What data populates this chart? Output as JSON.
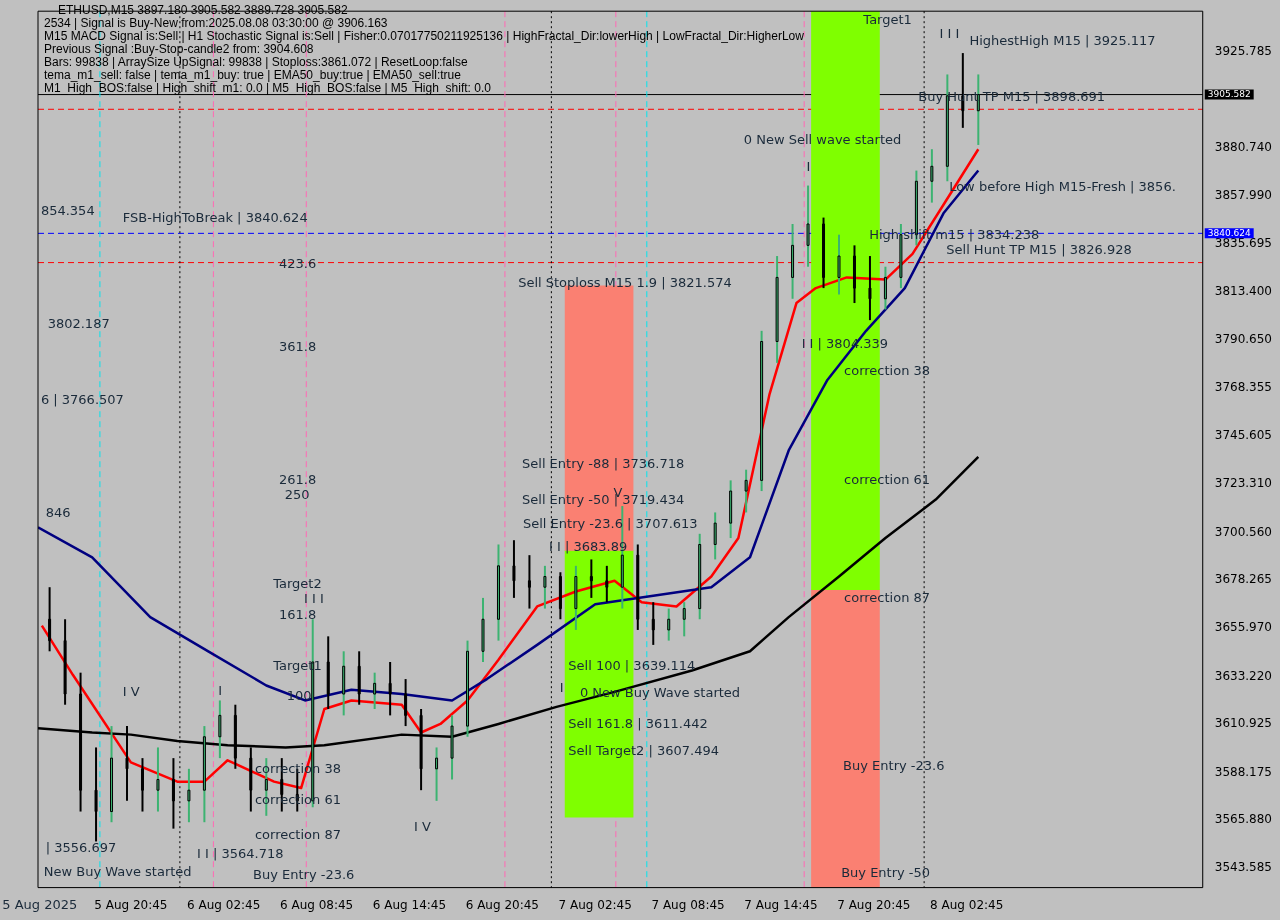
{
  "chart_data": {
    "type": "candlestick",
    "title": "ETHUSD,M15  3897.180 3905.582 3889.728 3905.582",
    "x": [
      "2025-08-05T15:30",
      "2025-08-05T16:30",
      "2025-08-05T17:30",
      "2025-08-05T18:30",
      "2025-08-05T19:30",
      "2025-08-05T20:30",
      "2025-08-05T21:30",
      "2025-08-05T22:30",
      "2025-08-05T23:30",
      "2025-08-06T00:30",
      "2025-08-06T01:30",
      "2025-08-06T02:30",
      "2025-08-06T03:30",
      "2025-08-06T04:30",
      "2025-08-06T05:30",
      "2025-08-06T06:30",
      "2025-08-06T07:30",
      "2025-08-06T08:30",
      "2025-08-06T09:30",
      "2025-08-06T10:30",
      "2025-08-06T11:30",
      "2025-08-06T12:30",
      "2025-08-06T13:30",
      "2025-08-06T14:30",
      "2025-08-06T15:30",
      "2025-08-06T16:30",
      "2025-08-06T17:30",
      "2025-08-06T18:30",
      "2025-08-06T19:30",
      "2025-08-06T20:30",
      "2025-08-06T21:30",
      "2025-08-06T22:30",
      "2025-08-06T23:30",
      "2025-08-07T00:30",
      "2025-08-07T01:30",
      "2025-08-07T02:30",
      "2025-08-07T03:30",
      "2025-08-07T04:30",
      "2025-08-07T05:30",
      "2025-08-07T06:30",
      "2025-08-07T07:30",
      "2025-08-07T08:30",
      "2025-08-07T09:30",
      "2025-08-07T10:30",
      "2025-08-07T11:30",
      "2025-08-07T12:30",
      "2025-08-07T13:30",
      "2025-08-07T14:30",
      "2025-08-07T15:30",
      "2025-08-07T16:30",
      "2025-08-07T17:30",
      "2025-08-07T18:30",
      "2025-08-07T19:30",
      "2025-08-07T20:30",
      "2025-08-07T21:30",
      "2025-08-07T22:30",
      "2025-08-07T23:30",
      "2025-08-08T00:30",
      "2025-08-08T01:30",
      "2025-08-08T02:30",
      "2025-08-08T03:30"
    ],
    "ohlc": [
      [
        3660,
        3675,
        3645,
        3650
      ],
      [
        3650,
        3660,
        3620,
        3625
      ],
      [
        3625,
        3635,
        3570,
        3580
      ],
      [
        3580,
        3600,
        3556,
        3570
      ],
      [
        3570,
        3610,
        3565,
        3595
      ],
      [
        3595,
        3610,
        3575,
        3590
      ],
      [
        3590,
        3595,
        3570,
        3580
      ],
      [
        3580,
        3600,
        3570,
        3585
      ],
      [
        3585,
        3595,
        3562,
        3575
      ],
      [
        3575,
        3590,
        3565,
        3580
      ],
      [
        3580,
        3610,
        3565,
        3605
      ],
      [
        3605,
        3622,
        3595,
        3615
      ],
      [
        3615,
        3620,
        3590,
        3595
      ],
      [
        3595,
        3600,
        3570,
        3580
      ],
      [
        3580,
        3595,
        3568,
        3585
      ],
      [
        3585,
        3595,
        3570,
        3578
      ],
      [
        3578,
        3590,
        3570,
        3575
      ],
      [
        3575,
        3660,
        3572,
        3640
      ],
      [
        3640,
        3652,
        3618,
        3625
      ],
      [
        3625,
        3645,
        3615,
        3638
      ],
      [
        3638,
        3645,
        3620,
        3625
      ],
      [
        3625,
        3635,
        3618,
        3630
      ],
      [
        3630,
        3640,
        3615,
        3625
      ],
      [
        3625,
        3632,
        3610,
        3615
      ],
      [
        3615,
        3618,
        3580,
        3590
      ],
      [
        3590,
        3600,
        3575,
        3595
      ],
      [
        3595,
        3615,
        3585,
        3610
      ],
      [
        3610,
        3650,
        3605,
        3645
      ],
      [
        3645,
        3670,
        3640,
        3660
      ],
      [
        3660,
        3695,
        3650,
        3685
      ],
      [
        3685,
        3697,
        3670,
        3678
      ],
      [
        3678,
        3690,
        3665,
        3675
      ],
      [
        3675,
        3685,
        3665,
        3680
      ],
      [
        3680,
        3682,
        3660,
        3665
      ],
      [
        3665,
        3685,
        3655,
        3680
      ],
      [
        3680,
        3688,
        3670,
        3678
      ],
      [
        3678,
        3685,
        3668,
        3675
      ],
      [
        3675,
        3713,
        3665,
        3690
      ],
      [
        3690,
        3695,
        3655,
        3660
      ],
      [
        3660,
        3668,
        3648,
        3655
      ],
      [
        3655,
        3665,
        3650,
        3660
      ],
      [
        3660,
        3668,
        3652,
        3665
      ],
      [
        3665,
        3700,
        3660,
        3695
      ],
      [
        3695,
        3710,
        3688,
        3705
      ],
      [
        3705,
        3725,
        3698,
        3720
      ],
      [
        3720,
        3730,
        3710,
        3725
      ],
      [
        3725,
        3795,
        3720,
        3790
      ],
      [
        3790,
        3830,
        3780,
        3820
      ],
      [
        3820,
        3845,
        3810,
        3835
      ],
      [
        3835,
        3863,
        3825,
        3845
      ],
      [
        3845,
        3848,
        3815,
        3820
      ],
      [
        3820,
        3840,
        3812,
        3830
      ],
      [
        3830,
        3835,
        3808,
        3815
      ],
      [
        3815,
        3830,
        3800,
        3810
      ],
      [
        3810,
        3825,
        3805,
        3820
      ],
      [
        3820,
        3845,
        3815,
        3840
      ],
      [
        3840,
        3870,
        3835,
        3865
      ],
      [
        3865,
        3880,
        3855,
        3872
      ],
      [
        3872,
        3915,
        3865,
        3905
      ],
      [
        3905,
        3925,
        3890,
        3898
      ],
      [
        3898,
        3915,
        3882,
        3905.6
      ]
    ],
    "colors": [
      "#000000",
      "#000000",
      "#000000",
      "#000000",
      "#3cb371",
      "#000000",
      "#000000",
      "#3cb371",
      "#000000",
      "#3cb371",
      "#3cb371",
      "#3cb371",
      "#000000",
      "#000000",
      "#3cb371",
      "#000000",
      "#000000",
      "#3cb371",
      "#000000",
      "#3cb371",
      "#000000",
      "#3cb371",
      "#000000",
      "#000000",
      "#000000",
      "#3cb371",
      "#3cb371",
      "#3cb371",
      "#3cb371",
      "#3cb371",
      "#000000",
      "#000000",
      "#3cb371",
      "#000000",
      "#3cb371",
      "#000000",
      "#000000",
      "#3cb371",
      "#000000",
      "#000000",
      "#3cb371",
      "#3cb371",
      "#3cb371",
      "#3cb371",
      "#3cb371",
      "#3cb371",
      "#3cb371",
      "#3cb371",
      "#3cb371",
      "#3cb371",
      "#000000",
      "#3cb371",
      "#000000",
      "#000000",
      "#3cb371",
      "#3cb371",
      "#3cb371",
      "#3cb371",
      "#3cb371",
      "#000000",
      "#3cb371"
    ],
    "series": [
      {
        "type": "bar",
        "color": "#fa8072",
        "x": [
          "2025-08-07T03:00"
        ],
        "base": [
          3692.2
        ],
        "values": [
          123.9
        ]
      },
      {
        "type": "bar",
        "color": "#7fff00",
        "x": [
          "2025-08-07T03:00"
        ],
        "base": [
          3567.4
        ],
        "values": [
          124.8
        ]
      },
      {
        "type": "bar",
        "color": "#7fff00",
        "x": [
          "2025-08-07T18:55"
        ],
        "base": [
          3673.9
        ],
        "values": [
          270.7
        ]
      },
      {
        "type": "bar",
        "color": "#fa8072",
        "x": [
          "2025-08-07T18:55"
        ],
        "base": [
          3534.4
        ],
        "values": [
          139.5
        ]
      },
      {
        "type": "line",
        "color": "#000000",
        "x": [
          "2025-08-05T14:45",
          "2025-08-05T18:15",
          "2025-08-05T20:45",
          "2025-08-05T23:45",
          "2025-08-06T03:00",
          "2025-08-06T06:45",
          "2025-08-06T09:15",
          "2025-08-06T14:15",
          "2025-08-06T17:30",
          "2025-08-06T20:30",
          "2025-08-07T00:15",
          "2025-08-07T04:00",
          "2025-08-07T09:00",
          "2025-08-07T12:45",
          "2025-08-07T15:15",
          "2025-08-07T18:30",
          "2025-08-07T21:30",
          "2025-08-08T00:45",
          "2025-08-08T03:30"
        ],
        "values": [
          3609,
          3607,
          3606,
          3603,
          3601,
          3600,
          3601,
          3606,
          3605,
          3611,
          3619,
          3626,
          3636,
          3645,
          3661,
          3680,
          3698,
          3716,
          3736
        ]
      },
      {
        "type": "line",
        "color": "#000080",
        "x": [
          "2025-08-05T14:45",
          "2025-08-05T18:15",
          "2025-08-05T22:00",
          "2025-08-06T01:45",
          "2025-08-06T05:30",
          "2025-08-06T08:00",
          "2025-08-06T11:00",
          "2025-08-06T14:15",
          "2025-08-06T17:30",
          "2025-08-06T19:45",
          "2025-08-06T23:00",
          "2025-08-07T02:45",
          "2025-08-07T06:30",
          "2025-08-07T10:15",
          "2025-08-07T12:45",
          "2025-08-07T15:15",
          "2025-08-07T17:45",
          "2025-08-07T20:15",
          "2025-08-07T22:45",
          "2025-08-08T01:15",
          "2025-08-08T03:30"
        ],
        "values": [
          3703,
          3689,
          3661,
          3645,
          3629,
          3622,
          3627,
          3625,
          3622,
          3632,
          3648,
          3667,
          3671,
          3675,
          3689,
          3739,
          3772,
          3795,
          3815,
          3850,
          3870
        ]
      },
      {
        "type": "line",
        "color": "#ff0000",
        "x": [
          "2025-08-05T15:00",
          "2025-08-05T17:00",
          "2025-08-05T20:45",
          "2025-08-05T23:45",
          "2025-08-06T01:30",
          "2025-08-06T03:00",
          "2025-08-06T06:00",
          "2025-08-06T07:45",
          "2025-08-06T09:15",
          "2025-08-06T11:00",
          "2025-08-06T14:15",
          "2025-08-06T15:30",
          "2025-08-06T16:45",
          "2025-08-06T18:30",
          "2025-08-06T20:30",
          "2025-08-06T23:00",
          "2025-08-07T01:30",
          "2025-08-07T04:00",
          "2025-08-07T05:45",
          "2025-08-07T08:00",
          "2025-08-07T10:15",
          "2025-08-07T12:00",
          "2025-08-07T14:00",
          "2025-08-07T15:45",
          "2025-08-07T17:00",
          "2025-08-07T19:00",
          "2025-08-07T21:30",
          "2025-08-07T23:15",
          "2025-08-08T01:15",
          "2025-08-08T03:30"
        ],
        "values": [
          3657,
          3634,
          3593,
          3584,
          3584,
          3594,
          3584,
          3581,
          3618,
          3622,
          3620,
          3607,
          3611,
          3622,
          3641,
          3666,
          3673,
          3678,
          3668,
          3666,
          3680,
          3698,
          3765,
          3808,
          3815,
          3820,
          3819,
          3831,
          3854,
          3880
        ]
      }
    ],
    "xlim": [
      "2025-08-05T14:45",
      "2025-08-08T18:00"
    ],
    "xticks": [
      {
        "value": "2025-08-05T20:45",
        "label": "5 Aug 20:45"
      },
      {
        "value": "2025-08-06T02:45",
        "label": "6 Aug 02:45"
      },
      {
        "value": "2025-08-06T08:45",
        "label": "6 Aug 08:45"
      },
      {
        "value": "2025-08-06T14:45",
        "label": "6 Aug 14:45"
      },
      {
        "value": "2025-08-06T20:45",
        "label": "6 Aug 20:45"
      },
      {
        "value": "2025-08-07T02:45",
        "label": "7 Aug 02:45"
      },
      {
        "value": "2025-08-07T08:45",
        "label": "7 Aug 08:45"
      },
      {
        "value": "2025-08-07T14:45",
        "label": "7 Aug 14:45"
      },
      {
        "value": "2025-08-07T20:45",
        "label": "7 Aug 20:45"
      },
      {
        "value": "2025-08-08T02:45",
        "label": "8 Aug 02:45"
      }
    ],
    "ylim": [
      3534.4,
      3944.6
    ],
    "yticks": [
      {
        "value": 3925.785,
        "label": "3925.785"
      },
      {
        "value": 3880.74,
        "label": "3880.740"
      },
      {
        "value": 3857.99,
        "label": "3857.990"
      },
      {
        "value": 3835.695,
        "label": "3835.695"
      },
      {
        "value": 3813.4,
        "label": "3813.400"
      },
      {
        "value": 3790.65,
        "label": "3790.650"
      },
      {
        "value": 3768.355,
        "label": "3768.355"
      },
      {
        "value": 3745.605,
        "label": "3745.605"
      },
      {
        "value": 3723.31,
        "label": "3723.310"
      },
      {
        "value": 3700.56,
        "label": "3700.560"
      },
      {
        "value": 3678.265,
        "label": "3678.265"
      },
      {
        "value": 3655.97,
        "label": "3655.970"
      },
      {
        "value": 3633.22,
        "label": "3633.220"
      },
      {
        "value": 3610.925,
        "label": "3610.925"
      },
      {
        "value": 3588.175,
        "label": "3588.175"
      },
      {
        "value": 3565.88,
        "label": "3565.880"
      },
      {
        "value": 3543.585,
        "label": "3543.585"
      }
    ],
    "marker": "none",
    "ref_lines": [
      {
        "axis": "y",
        "value": 3905.582,
        "label": "3905.582",
        "color": "#000000",
        "line_style": "solid"
      },
      {
        "axis": "y",
        "value": 3840.624,
        "label": "3840.624",
        "color": "#0000ff",
        "line_style": "dashed"
      },
      {
        "axis": "y",
        "value": 3898.691,
        "color": "#ff0000",
        "line_style": "dashed"
      },
      {
        "axis": "y",
        "value": 3826.928,
        "color": "#ff0000",
        "line_style": "dashed"
      },
      {
        "axis": "x",
        "value": "2025-08-05T18:45",
        "color": "#00e5ee",
        "line_style": "dashed"
      },
      {
        "axis": "x",
        "value": "2025-08-05T23:55",
        "color": "#000000",
        "line_style": "dotted"
      },
      {
        "axis": "x",
        "value": "2025-08-06T02:05",
        "color": "#ff69b4",
        "line_style": "dashed"
      },
      {
        "axis": "x",
        "value": "2025-08-06T08:05",
        "color": "#ff69b4",
        "line_style": "dashed"
      },
      {
        "axis": "x",
        "value": "2025-08-06T20:55",
        "color": "#ff69b4",
        "line_style": "dashed"
      },
      {
        "axis": "x",
        "value": "2025-08-06T23:55",
        "color": "#000000",
        "line_style": "dotted"
      },
      {
        "axis": "x",
        "value": "2025-08-07T04:05",
        "color": "#ff69b4",
        "line_style": "dashed"
      },
      {
        "axis": "x",
        "value": "2025-08-07T06:05",
        "color": "#00e5ee",
        "line_style": "dashed"
      },
      {
        "axis": "x",
        "value": "2025-08-07T16:15",
        "color": "#ff69b4",
        "line_style": "dashed"
      },
      {
        "axis": "x",
        "value": "2025-08-08T00:00",
        "color": "#000000",
        "line_style": "dotted"
      }
    ],
    "annotations": [
      "2534 | Signal is Buy-New from:2025.08.08 03:30:00 @ 3906.163",
      "M15 MACD Signal is:Sell | H1 Stochastic Signal is:Sell | Fisher:0.07017750211925136 | HighFractal_Dir:lowerHigh | LowFractal_Dir:HigherLow",
      "Previous Signal :Buy-Stop-candle2 from: 3904.608",
      "Bars: 99838 | ArraySize UpSignal: 99838 | Stoploss:3861.072 | ResetLoop:false",
      "tema_m1_sell: false | tema_m1_buy: true | EMA50_buy:true | EMA50_sell:true",
      "M1_High_BOS:false | High_shift_m1: 0.0 | M5_High_BOS:false | M5_High_shift: 0.0",
      "5 Aug 2025",
      "FSB-HighToBreak | 3840.624",
      "854.354",
      "3802.187",
      "6 | 3766.507",
      "846",
      "| 3556.697",
      "New Buy Wave started",
      "I V",
      "I",
      "I I | 3564.718",
      "correction 38",
      "correction 61",
      "correction 87",
      "Buy Entry -23.6",
      "423.6",
      "361.8",
      "261.8",
      "250",
      "Target2",
      "I I I",
      "161.8",
      "Target1",
      "100",
      "I V",
      "Sell Stoploss M15 1.9 | 3821.574",
      "Sell Entry -88 | 3736.718",
      "Sell Entry -50 | 3719.434",
      "Sell Entry -23.6 | 3707.613",
      "I I | 3683.89",
      "V",
      "Sell 100 | 3639.114",
      "I",
      "0 New Buy Wave started",
      "Sell 161.8 | 3611.442",
      "Sell Target2 | 3607.494",
      "0 New Sell wave started",
      "Target1",
      "I I I",
      "HighestHigh   M15 | 3925.117",
      "Buy Hunt TP M15 | 3898.691",
      "Low before High   M15-Fresh | 3856.",
      "High shift m15 | 3834.238",
      "Sell Hunt TP M15 | 3826.928",
      "I",
      "I I | 3804.339",
      "correction 38",
      "correction 61",
      "correction 87",
      "Buy Entry -23.6",
      "Buy Entry -50"
    ]
  }
}
